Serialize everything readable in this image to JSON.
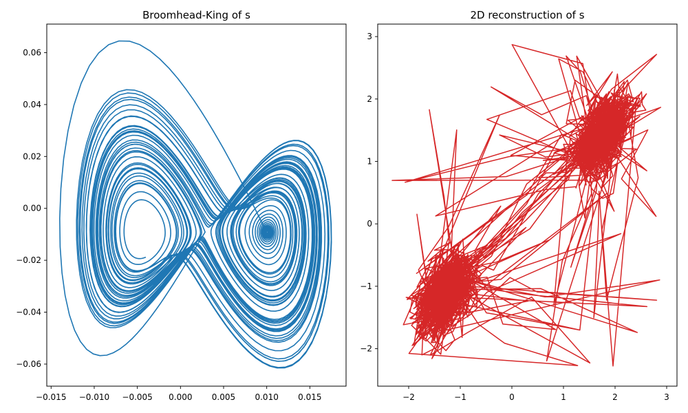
{
  "chart_data": [
    {
      "type": "line",
      "title": "Broomhead-King of s",
      "xlabel": "",
      "ylabel": "",
      "xlim": [
        -0.0155,
        0.0192
      ],
      "ylim": [
        -0.0685,
        0.071
      ],
      "xticks": [
        -0.015,
        -0.01,
        -0.005,
        0.0,
        0.005,
        0.01,
        0.015
      ],
      "xtick_labels": [
        "−0.015",
        "−0.010",
        "−0.005",
        "0.000",
        "0.005",
        "0.010",
        "0.015"
      ],
      "yticks": [
        -0.06,
        -0.04,
        -0.02,
        0.0,
        0.02,
        0.04,
        0.06
      ],
      "ytick_labels": [
        "−0.06",
        "−0.04",
        "−0.02",
        "0.00",
        "0.02",
        "0.04",
        "0.06"
      ],
      "grid": false,
      "color": "#1f77b4",
      "series": [
        {
          "description": "Lorenz-type two-lobe attractor trajectory (approximate)",
          "left_lobe_center": [
            -0.0045,
            0.0005
          ],
          "right_lobe_center": [
            0.0085,
            0.0005
          ],
          "start_point": [
            0.0066,
            0.0195
          ],
          "extent_x": [
            -0.014,
            0.0175
          ],
          "extent_y": [
            -0.0615,
            0.0645
          ]
        }
      ]
    },
    {
      "type": "line",
      "title": "2D reconstruction of s",
      "xlabel": "",
      "ylabel": "",
      "xlim": [
        -2.6,
        3.2
      ],
      "ylim": [
        -2.6,
        3.2
      ],
      "xticks": [
        -2,
        -1,
        0,
        1,
        2,
        3
      ],
      "xtick_labels": [
        "−2",
        "−1",
        "0",
        "1",
        "2",
        "3"
      ],
      "yticks": [
        -2,
        -1,
        0,
        1,
        2,
        3
      ],
      "ytick_labels": [
        "−2",
        "−1",
        "0",
        "1",
        "2",
        "3"
      ],
      "grid": false,
      "color": "#d62728",
      "series": [
        {
          "description": "Noisy delay-embedding trajectory with two dense triangular clusters (approximate)",
          "cluster_a_center": [
            1.4,
            0.9
          ],
          "cluster_b_center": [
            -0.9,
            -0.6
          ],
          "extent_x": [
            -2.4,
            2.95
          ],
          "extent_y": [
            -2.35,
            2.95
          ]
        }
      ]
    }
  ]
}
